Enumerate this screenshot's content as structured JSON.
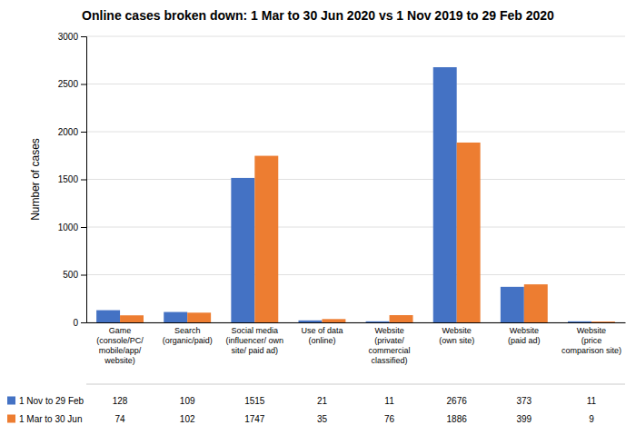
{
  "chart_data": {
    "type": "bar",
    "title": "Online cases broken down: 1 Mar to 30 Jun 2020 vs 1 Nov 2019 to 29 Feb 2020",
    "categories": [
      "Game\n(console/PC/\nmobile/app/\nwebsite)",
      "Search\n(organic/paid)",
      "Social media\n(influencer/ own\nsite/ paid ad)",
      "Use of data\n(online)",
      "Website\n(private/\ncommercial\nclassified)",
      "Website\n(own site)",
      "Website\n(paid ad)",
      "Website\n(price\ncomparison site)"
    ],
    "series": [
      {
        "name": "1 Nov to 29 Feb",
        "color": "#4472C4",
        "values": [
          128,
          109,
          1515,
          21,
          11,
          2676,
          373,
          11
        ]
      },
      {
        "name": "1 Mar to 30 Jun",
        "color": "#ED7D31",
        "values": [
          74,
          102,
          1747,
          35,
          76,
          1886,
          399,
          9
        ]
      }
    ],
    "ylabel": "Number of cases",
    "ylim": [
      0,
      3000
    ],
    "yticks": [
      0,
      500,
      1000,
      1500,
      2000,
      2500,
      3000
    ],
    "grid": true,
    "legend": "bottom",
    "data_labels": true
  }
}
